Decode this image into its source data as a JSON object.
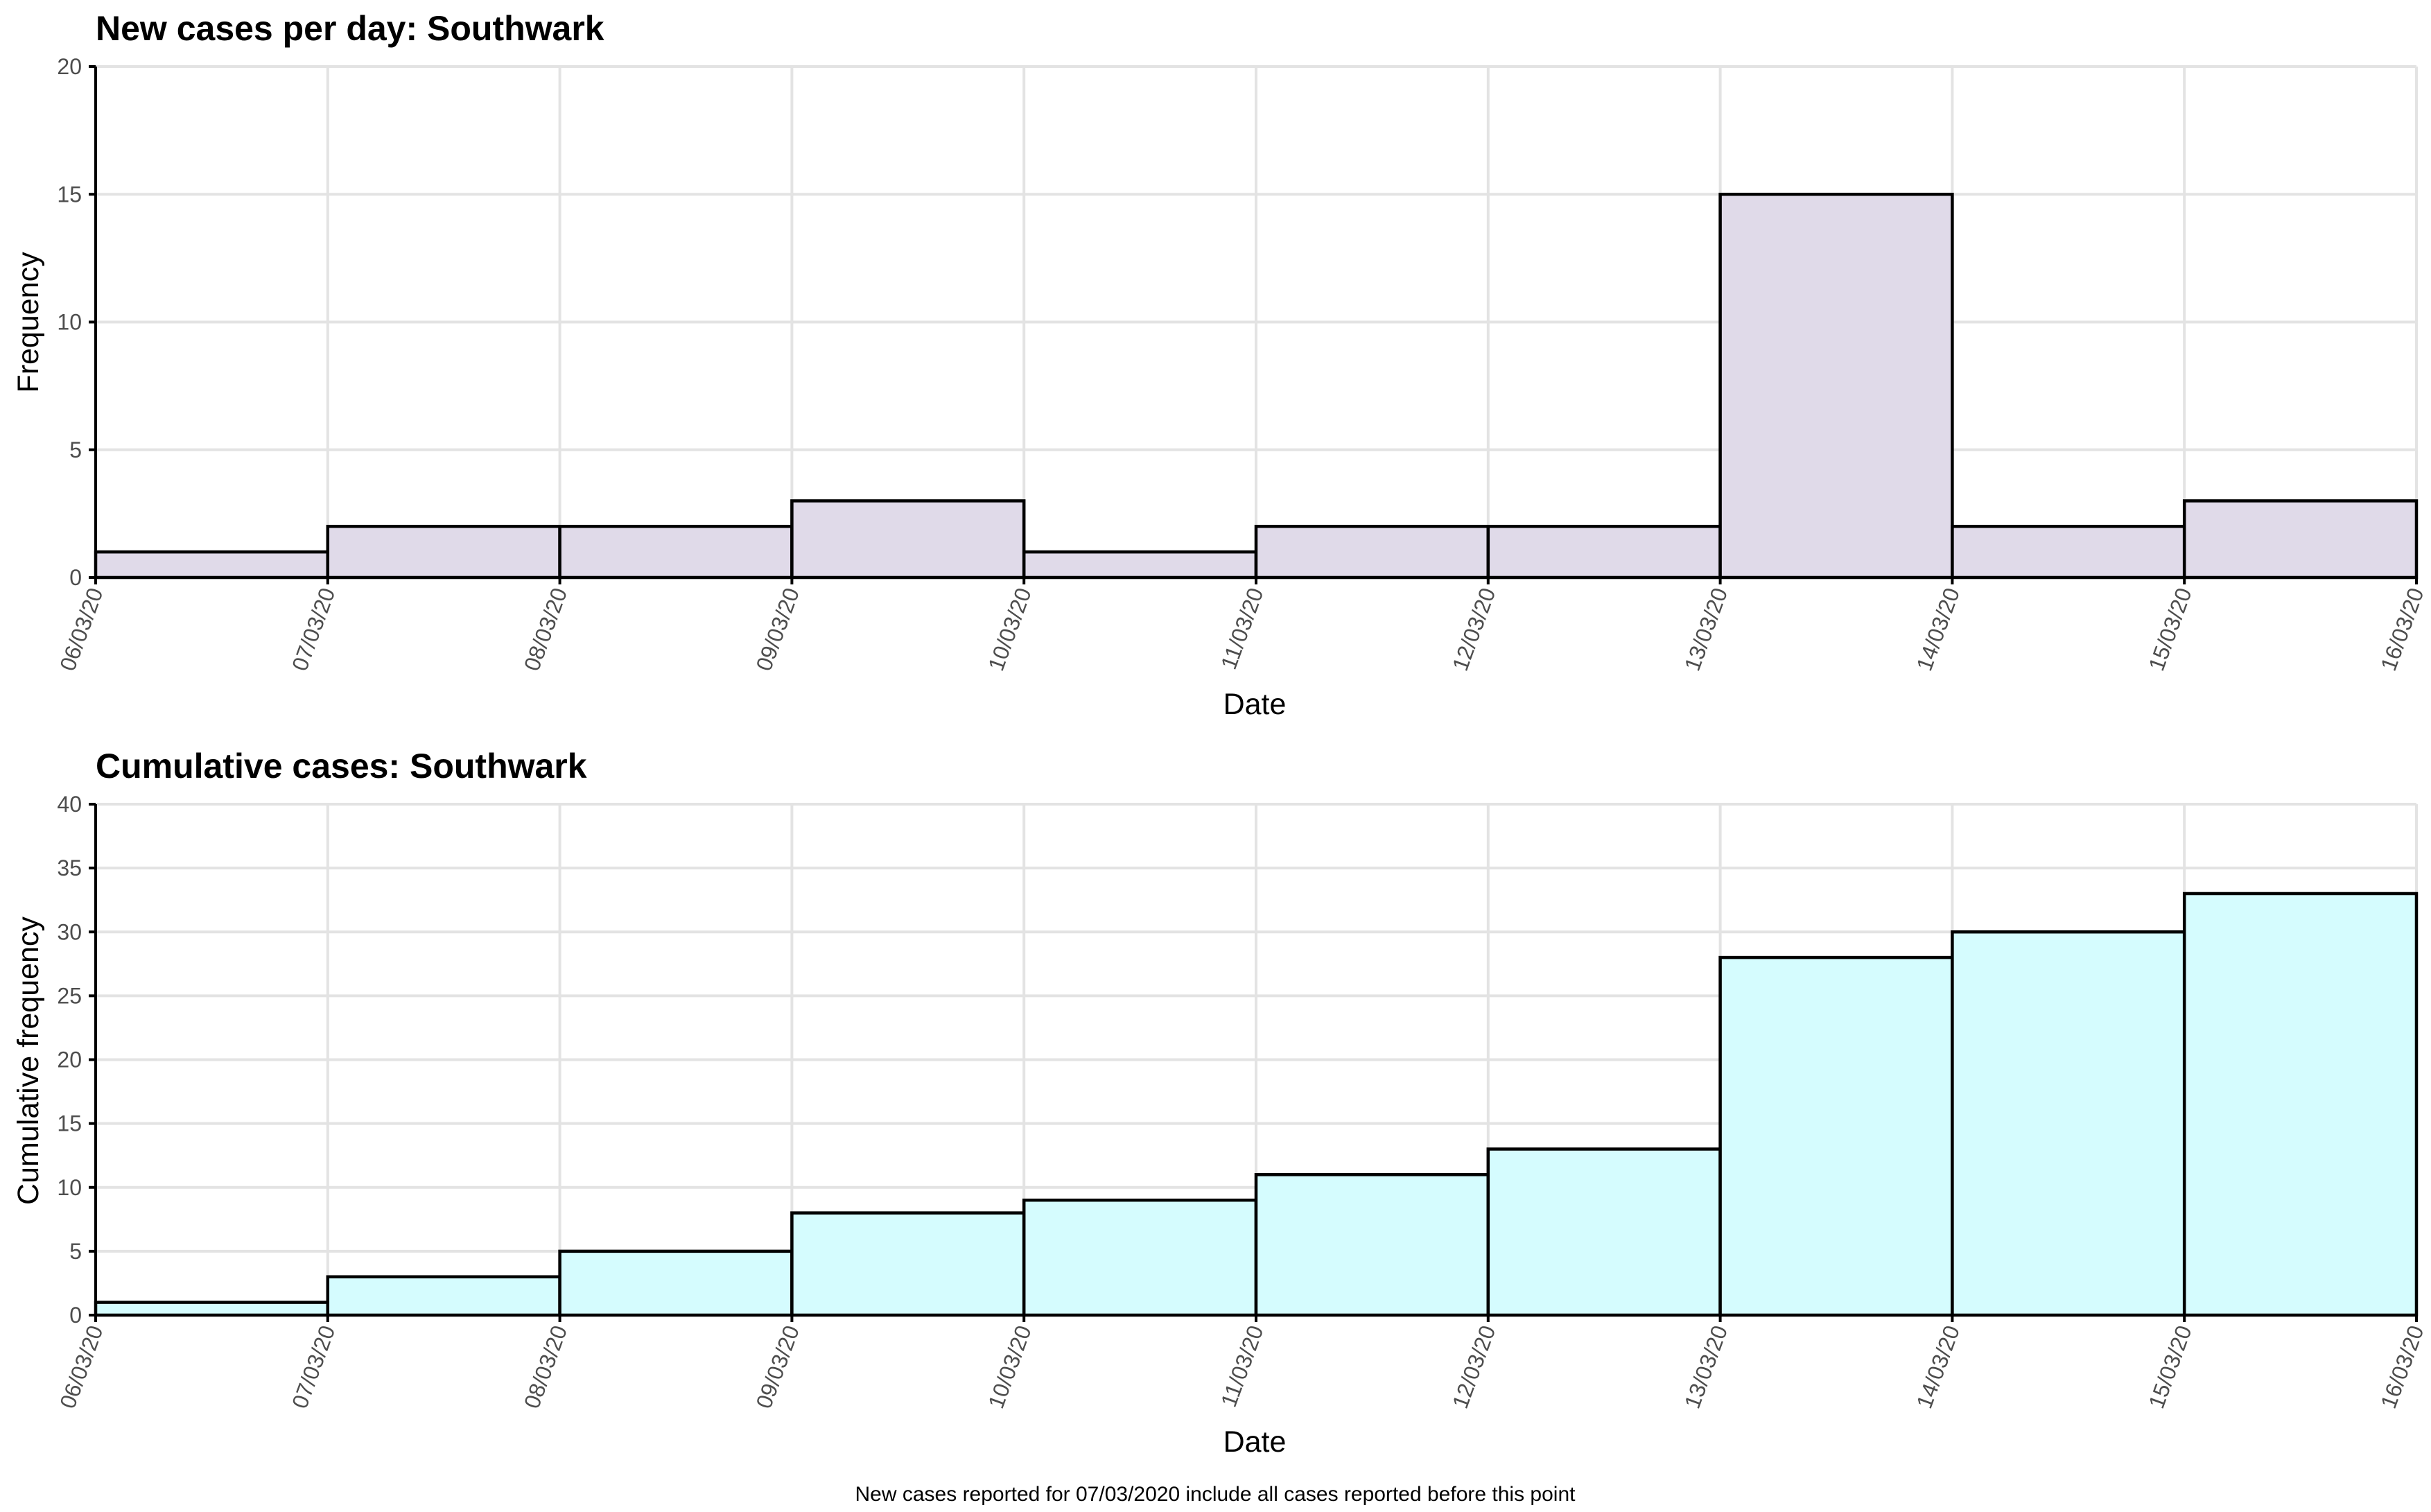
{
  "chart_data": [
    {
      "type": "bar",
      "title": "New cases per day: Southwark",
      "xlabel": "Date",
      "ylabel": "Frequency",
      "x_ticks": [
        "06/03/20",
        "07/03/20",
        "08/03/20",
        "09/03/20",
        "10/03/20",
        "11/03/20",
        "12/03/20",
        "13/03/20",
        "14/03/20",
        "15/03/20",
        "16/03/20"
      ],
      "categories": [
        "06/03/20",
        "07/03/20",
        "08/03/20",
        "09/03/20",
        "10/03/20",
        "11/03/20",
        "12/03/20",
        "13/03/20",
        "14/03/20",
        "15/03/20"
      ],
      "values": [
        1,
        2,
        2,
        3,
        1,
        2,
        2,
        15,
        2,
        3
      ],
      "ylim": [
        0,
        20
      ],
      "y_ticks": [
        0,
        5,
        10,
        15,
        20
      ],
      "grid": true,
      "fill_color": "#e0dae9"
    },
    {
      "type": "bar",
      "title": "Cumulative cases: Southwark",
      "xlabel": "Date",
      "ylabel": "Cumulative frequency",
      "x_ticks": [
        "06/03/20",
        "07/03/20",
        "08/03/20",
        "09/03/20",
        "10/03/20",
        "11/03/20",
        "12/03/20",
        "13/03/20",
        "14/03/20",
        "15/03/20",
        "16/03/20"
      ],
      "categories": [
        "06/03/20",
        "07/03/20",
        "08/03/20",
        "09/03/20",
        "10/03/20",
        "11/03/20",
        "12/03/20",
        "13/03/20",
        "14/03/20",
        "15/03/20"
      ],
      "values": [
        1,
        3,
        5,
        8,
        9,
        11,
        13,
        28,
        30,
        33
      ],
      "ylim": [
        0,
        40
      ],
      "y_ticks": [
        0,
        5,
        10,
        15,
        20,
        25,
        30,
        35,
        40
      ],
      "grid": true,
      "fill_color": "#d5fcfe"
    }
  ],
  "caption": "New cases reported for 07/03/2020 include all cases reported before this point",
  "colors": {
    "grid": "#e3e3e3",
    "axis": "#000000",
    "tick_label": "#4d4d4d",
    "bar_outline": "#000000"
  }
}
